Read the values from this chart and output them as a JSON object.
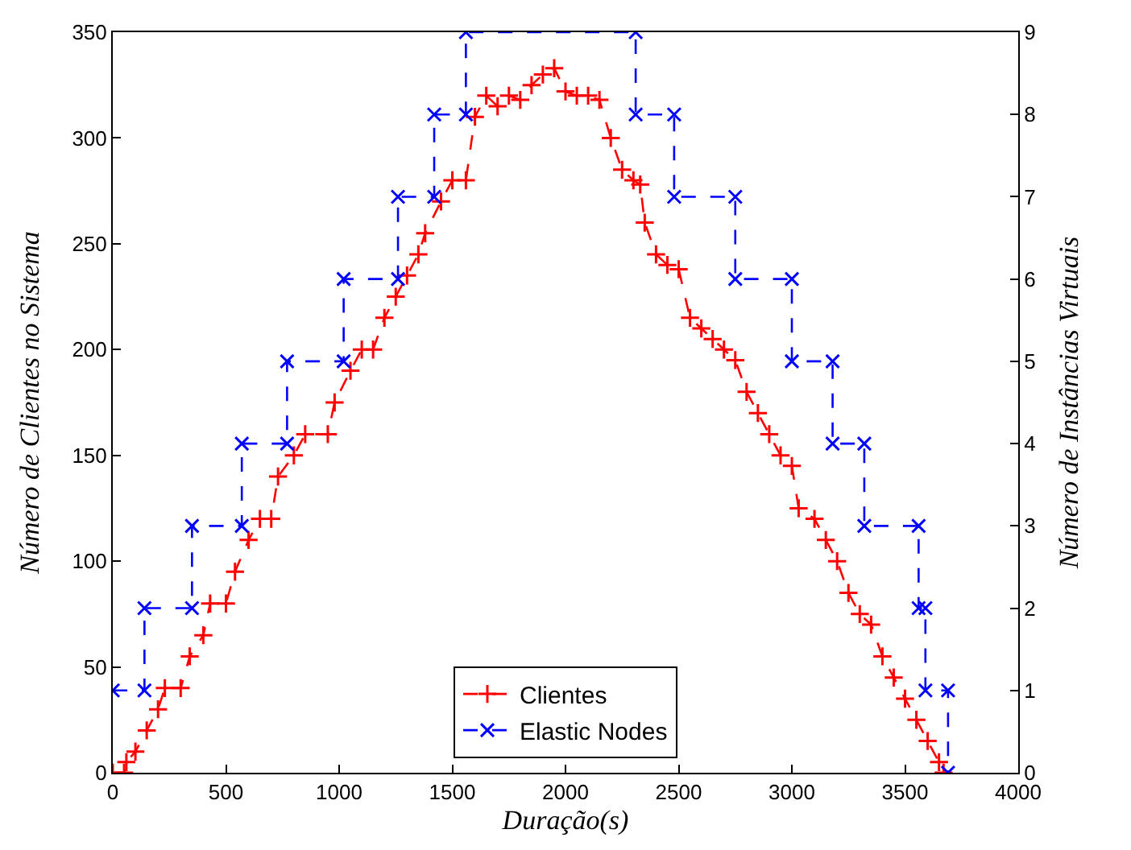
{
  "chart_data": {
    "type": "line",
    "xlabel": "Duração(s)",
    "ylabel": "Número de Clientes no Sistema",
    "y2label": "Número de Instâncias Virtuais",
    "xlim": [
      0,
      4000
    ],
    "xticks": [
      0,
      500,
      1000,
      1500,
      2000,
      2500,
      3000,
      3500,
      4000
    ],
    "ylim": [
      0,
      350
    ],
    "yticks": [
      0,
      50,
      100,
      150,
      200,
      250,
      300,
      350
    ],
    "y2lim": [
      0,
      9
    ],
    "y2ticks": [
      0,
      1,
      2,
      3,
      4,
      5,
      6,
      7,
      8,
      9
    ],
    "legend": "bottom",
    "line_style": "dashed",
    "series": [
      {
        "name": "Clientes",
        "color": "#ff0000",
        "marker": "cross",
        "x": [
          0,
          50,
          60,
          100,
          150,
          200,
          230,
          300,
          340,
          400,
          430,
          500,
          540,
          600,
          650,
          700,
          730,
          800,
          850,
          950,
          980,
          1050,
          1100,
          1150,
          1200,
          1250,
          1300,
          1350,
          1380,
          1450,
          1500,
          1560,
          1600,
          1650,
          1700,
          1750,
          1800,
          1850,
          1900,
          1950,
          2000,
          2050,
          2100,
          2150,
          2200,
          2250,
          2300,
          2330,
          2350,
          2400,
          2450,
          2500,
          2550,
          2600,
          2650,
          2700,
          2750,
          2800,
          2850,
          2900,
          2950,
          3000,
          3030,
          3100,
          3150,
          3200,
          3250,
          3300,
          3350,
          3400,
          3450,
          3500,
          3550,
          3600,
          3650,
          3670
        ],
        "values": [
          0,
          0,
          5,
          10,
          20,
          30,
          40,
          40,
          55,
          65,
          80,
          80,
          95,
          110,
          120,
          120,
          140,
          150,
          160,
          160,
          175,
          190,
          200,
          200,
          215,
          225,
          235,
          245,
          255,
          270,
          280,
          280,
          310,
          320,
          315,
          320,
          318,
          325,
          330,
          333,
          322,
          320,
          320,
          318,
          300,
          285,
          280,
          278,
          260,
          245,
          240,
          238,
          215,
          210,
          205,
          200,
          195,
          180,
          170,
          160,
          150,
          145,
          125,
          120,
          110,
          100,
          85,
          75,
          70,
          55,
          45,
          35,
          25,
          15,
          5,
          0
        ]
      },
      {
        "name": "Elastic Nodes",
        "color": "#0000ff",
        "marker": "cross",
        "type": "step",
        "axis": "y2",
        "x": [
          0,
          140,
          140,
          350,
          350,
          570,
          570,
          770,
          770,
          1020,
          1020,
          1260,
          1260,
          1420,
          1420,
          1560,
          1560,
          2310,
          2310,
          2480,
          2480,
          2750,
          2750,
          3000,
          3000,
          3180,
          3180,
          3320,
          3320,
          3560,
          3560,
          3590,
          3590,
          3690,
          3690
        ],
        "values": [
          1,
          1,
          2,
          2,
          3,
          3,
          4,
          4,
          5,
          5,
          6,
          6,
          7,
          7,
          8,
          8,
          9,
          9,
          8,
          8,
          7,
          7,
          6,
          6,
          5,
          5,
          4,
          4,
          3,
          3,
          2,
          2,
          1,
          1,
          0
        ]
      }
    ]
  }
}
